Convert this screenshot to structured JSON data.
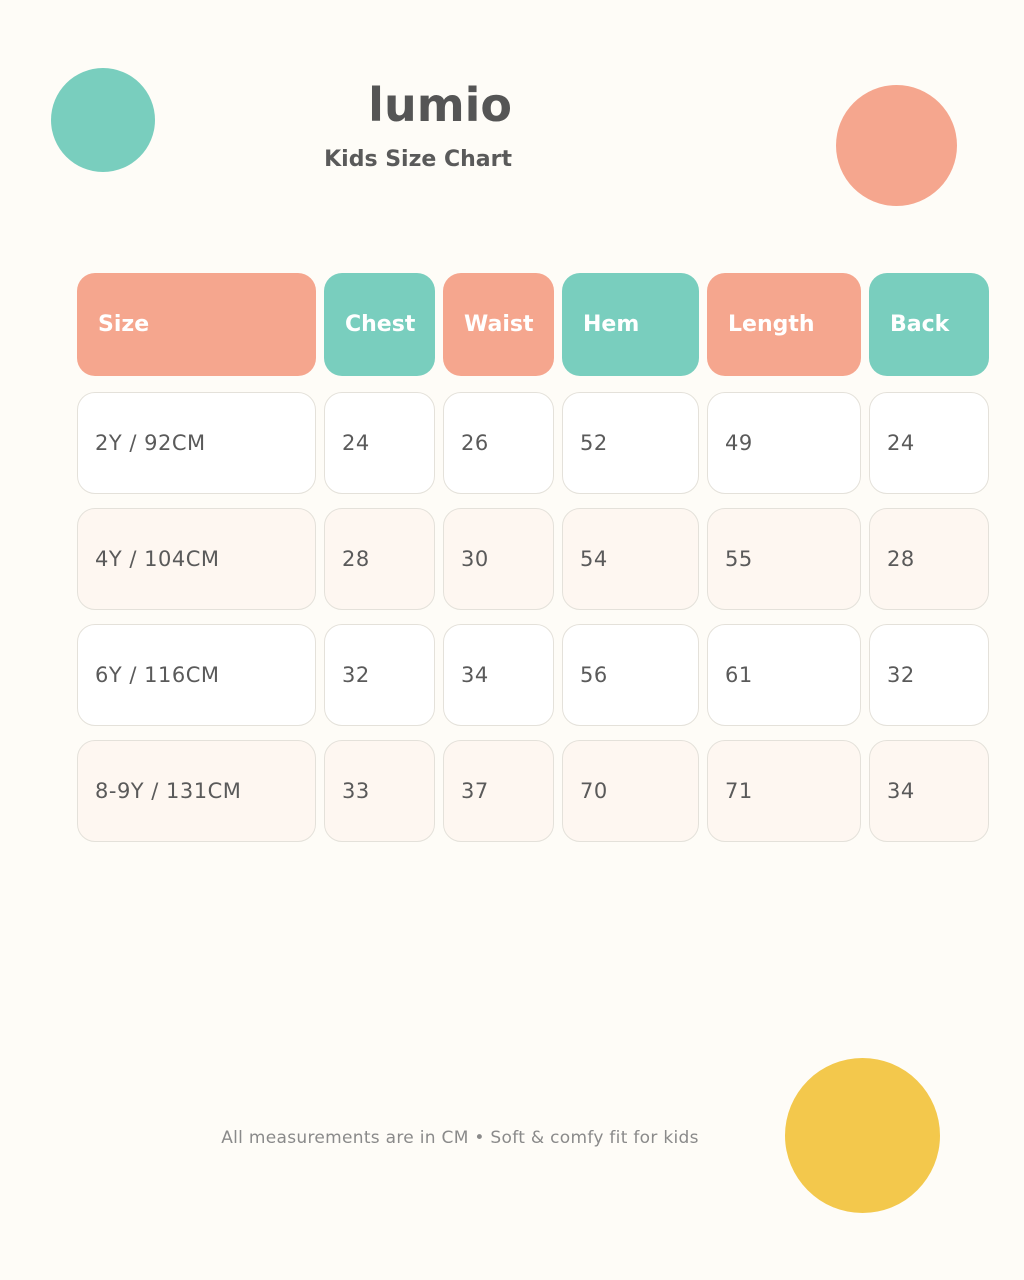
{
  "brand": "lumio",
  "subtitle": "Kids Size Chart",
  "colors": {
    "background": "#fefcf7",
    "coral": "#f5a68e",
    "teal": "#79cebe",
    "yellow": "#f3c84c",
    "row_alt": "#fef7f1"
  },
  "table": {
    "headers": [
      "Size",
      "Chest",
      "Waist",
      "Hem",
      "Length",
      "Back"
    ],
    "rows": [
      [
        "2Y / 92CM",
        "24",
        "26",
        "52",
        "49",
        "24"
      ],
      [
        "4Y / 104CM",
        "28",
        "30",
        "54",
        "55",
        "28"
      ],
      [
        "6Y / 116CM",
        "32",
        "34",
        "56",
        "61",
        "32"
      ],
      [
        "8-9Y / 131CM",
        "33",
        "37",
        "70",
        "71",
        "34"
      ]
    ]
  },
  "footer": "All measurements are in CM • Soft & comfy fit for kids"
}
